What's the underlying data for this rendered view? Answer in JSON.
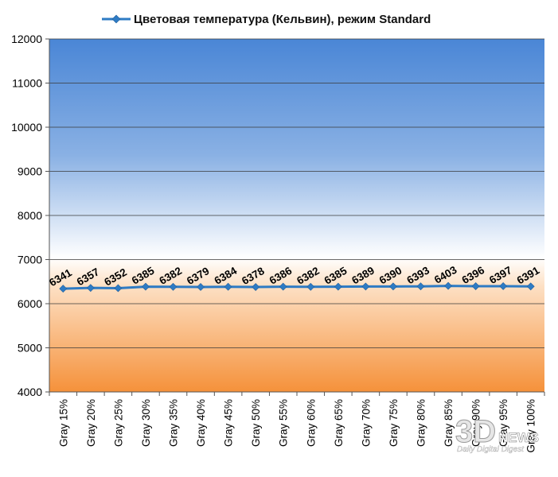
{
  "chart_data": {
    "type": "line",
    "title": "",
    "xlabel": "",
    "ylabel": "",
    "ylim": [
      4000,
      12000
    ],
    "yticks": [
      4000,
      5000,
      6000,
      7000,
      8000,
      9000,
      10000,
      11000,
      12000
    ],
    "grid": true,
    "legend_position": "top",
    "categories": [
      "Gray 15%",
      "Gray 20%",
      "Gray 25%",
      "Gray 30%",
      "Gray 35%",
      "Gray 40%",
      "Gray 45%",
      "Gray 50%",
      "Gray 55%",
      "Gray 60%",
      "Gray 65%",
      "Gray 70%",
      "Gray 75%",
      "Gray 80%",
      "Gray 85%",
      "Gray 90%",
      "Gray 95%",
      "Gray 100%"
    ],
    "series": [
      {
        "name": "Цветовая температура (Кельвин), режим Standard",
        "color": "#2e7bc4",
        "marker": "diamond",
        "values": [
          6341,
          6357,
          6352,
          6385,
          6382,
          6379,
          6384,
          6378,
          6386,
          6382,
          6385,
          6389,
          6390,
          6393,
          6403,
          6396,
          6397,
          6391
        ]
      }
    ],
    "background_gradient": [
      "#4a86d6",
      "#ffffff",
      "#f5913a"
    ]
  },
  "watermark": {
    "logo_text": "3D",
    "news_text": "NEWS",
    "tagline": "Daily Digital Digest"
  }
}
